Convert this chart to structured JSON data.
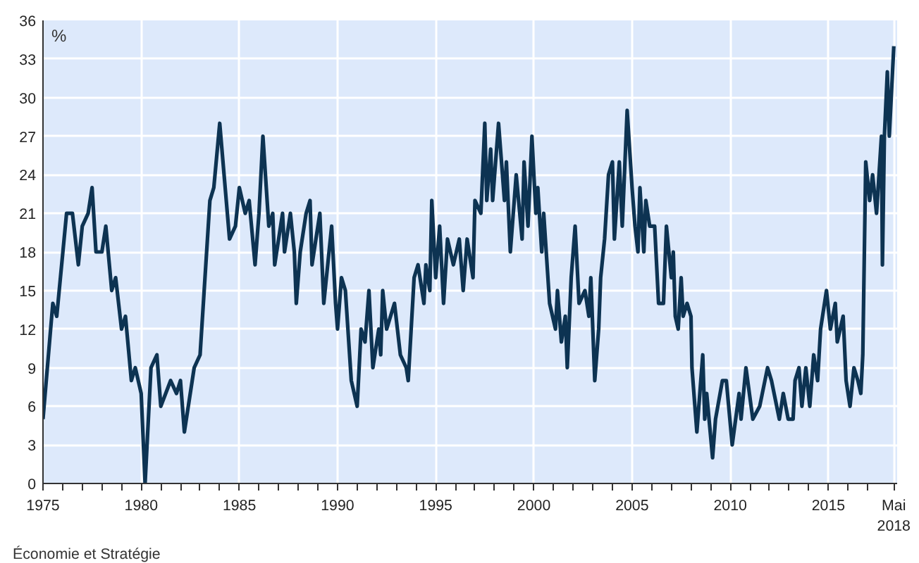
{
  "chart_data": {
    "type": "line",
    "ylabel": "%",
    "annotations": [
      "Économie et Stratégie"
    ],
    "x": [
      1975.0,
      1975.5,
      1975.7,
      1976.2,
      1976.5,
      1976.8,
      1977.0,
      1977.3,
      1977.5,
      1977.7,
      1978.0,
      1978.2,
      1978.5,
      1978.7,
      1979.0,
      1979.2,
      1979.5,
      1979.7,
      1980.0,
      1980.2,
      1980.5,
      1980.8,
      1981.0,
      1981.5,
      1981.8,
      1982.0,
      1982.2,
      1982.7,
      1983.0,
      1983.5,
      1983.7,
      1984.0,
      1984.5,
      1984.8,
      1985.0,
      1985.3,
      1985.5,
      1985.8,
      1986.0,
      1986.2,
      1986.5,
      1986.7,
      1986.8,
      1987.2,
      1987.3,
      1987.6,
      1987.8,
      1987.9,
      1988.1,
      1988.4,
      1988.6,
      1988.7,
      1988.9,
      1989.1,
      1989.3,
      1989.5,
      1989.7,
      1989.9,
      1990.0,
      1990.2,
      1990.4,
      1990.7,
      1991.0,
      1991.2,
      1991.4,
      1991.6,
      1991.8,
      1992.1,
      1992.2,
      1992.3,
      1992.5,
      1992.9,
      1993.2,
      1993.5,
      1993.6,
      1993.9,
      1994.1,
      1994.4,
      1994.5,
      1994.7,
      1994.8,
      1995.0,
      1995.2,
      1995.4,
      1995.6,
      1995.9,
      1996.2,
      1996.4,
      1996.6,
      1996.9,
      1997.0,
      1997.3,
      1997.5,
      1997.6,
      1997.8,
      1997.9,
      1998.2,
      1998.5,
      1998.6,
      1998.8,
      1999.1,
      1999.4,
      1999.5,
      1999.7,
      1999.9,
      2000.1,
      2000.2,
      2000.4,
      2000.5,
      2000.8,
      2001.1,
      2001.2,
      2001.4,
      2001.6,
      2001.7,
      2001.9,
      2002.1,
      2002.3,
      2002.6,
      2002.8,
      2002.9,
      2003.1,
      2003.3,
      2003.4,
      2003.6,
      2003.8,
      2004.0,
      2004.1,
      2004.35,
      2004.5,
      2004.75,
      2005.0,
      2005.15,
      2005.3,
      2005.4,
      2005.6,
      2005.7,
      2005.9,
      2006.15,
      2006.35,
      2006.6,
      2006.75,
      2007.0,
      2007.1,
      2007.2,
      2007.35,
      2007.5,
      2007.6,
      2007.8,
      2008.0,
      2008.05,
      2008.2,
      2008.3,
      2008.6,
      2008.7,
      2008.8,
      2009.1,
      2009.25,
      2009.6,
      2009.8,
      2010.1,
      2010.45,
      2010.55,
      2010.8,
      2011.15,
      2011.5,
      2011.9,
      2012.1,
      2012.5,
      2012.7,
      2012.95,
      2013.2,
      2013.3,
      2013.5,
      2013.65,
      2013.85,
      2014.05,
      2014.25,
      2014.45,
      2014.6,
      2014.9,
      2015.1,
      2015.35,
      2015.45,
      2015.75,
      2015.9,
      2016.1,
      2016.3,
      2016.5,
      2016.65,
      2016.75,
      2016.9,
      2017.1,
      2017.25,
      2017.45,
      2017.7,
      2017.75,
      2017.85,
      2018.0,
      2018.1,
      2018.33
    ],
    "series": [
      {
        "color": "#0d3352",
        "values": [
          5,
          14,
          13,
          21,
          21,
          17,
          20,
          21,
          23,
          18,
          18,
          20,
          15,
          16,
          12,
          13,
          8,
          9,
          7,
          0,
          9,
          10,
          6,
          8,
          7,
          8,
          4,
          9,
          10,
          22,
          23,
          28,
          19,
          20,
          23,
          21,
          22,
          17,
          21,
          27,
          20,
          21,
          17,
          21,
          18,
          21,
          18,
          14,
          18,
          21,
          22,
          17,
          19,
          21,
          14,
          17,
          20,
          14,
          12,
          16,
          15,
          8,
          6,
          12,
          11,
          15,
          9,
          12,
          10,
          15,
          12,
          14,
          10,
          9,
          8,
          16,
          17,
          14,
          17,
          15,
          22,
          16,
          20,
          14,
          19,
          17,
          19,
          15,
          19,
          16,
          22,
          21,
          28,
          22,
          26,
          22,
          28,
          22,
          25,
          18,
          24,
          19,
          25,
          20,
          27,
          21,
          23,
          18,
          21,
          14,
          12,
          15,
          11,
          13,
          9,
          16,
          20,
          14,
          15,
          13,
          16,
          8,
          12,
          16,
          19,
          24,
          25,
          19,
          25,
          20,
          29,
          23,
          20,
          18,
          23,
          18,
          22,
          20,
          20,
          14,
          14,
          20,
          16,
          18,
          13,
          12,
          16,
          13,
          14,
          13,
          9,
          6,
          4,
          10,
          5,
          7,
          2,
          5,
          8,
          8,
          3,
          7,
          5,
          9,
          5,
          6,
          9,
          8,
          5,
          7,
          5,
          5,
          8,
          9,
          6,
          9,
          6,
          10,
          8,
          12,
          15,
          12,
          14,
          11,
          13,
          8,
          6,
          9,
          8,
          7,
          10,
          25,
          22,
          24,
          21,
          27,
          17,
          27,
          32,
          27,
          34
        ]
      }
    ],
    "xlim": [
      1975,
      2018.5
    ],
    "ylim": [
      0,
      36
    ],
    "xticks": [
      1975,
      {
        "value": 1976,
        "label": null
      },
      {
        "value": 1977,
        "label": null
      },
      {
        "value": 1978,
        "label": null
      },
      {
        "value": 1979,
        "label": null
      },
      1980,
      {
        "value": 1981,
        "label": null
      },
      {
        "value": 1982,
        "label": null
      },
      {
        "value": 1983,
        "label": null
      },
      {
        "value": 1984,
        "label": null
      },
      1985,
      {
        "value": 1986,
        "label": null
      },
      {
        "value": 1987,
        "label": null
      },
      {
        "value": 1988,
        "label": null
      },
      {
        "value": 1989,
        "label": null
      },
      1990,
      {
        "value": 1991,
        "label": null
      },
      {
        "value": 1992,
        "label": null
      },
      {
        "value": 1993,
        "label": null
      },
      {
        "value": 1994,
        "label": null
      },
      1995,
      {
        "value": 1996,
        "label": null
      },
      {
        "value": 1997,
        "label": null
      },
      {
        "value": 1998,
        "label": null
      },
      {
        "value": 1999,
        "label": null
      },
      2000,
      {
        "value": 2001,
        "label": null
      },
      {
        "value": 2002,
        "label": null
      },
      {
        "value": 2003,
        "label": null
      },
      {
        "value": 2004,
        "label": null
      },
      2005,
      {
        "value": 2006,
        "label": null
      },
      {
        "value": 2007,
        "label": null
      },
      {
        "value": 2008,
        "label": null
      },
      {
        "value": 2009,
        "label": null
      },
      2010,
      {
        "value": 2011,
        "label": null
      },
      {
        "value": 2012,
        "label": null
      },
      {
        "value": 2013,
        "label": null
      },
      {
        "value": 2014,
        "label": null
      },
      2015,
      {
        "value": 2016,
        "label": null
      },
      {
        "value": 2017,
        "label": null
      },
      {
        "value": 2018.33,
        "label": "Mai\n2018"
      }
    ],
    "yticks": [
      0,
      3,
      6,
      9,
      12,
      15,
      18,
      21,
      24,
      27,
      30,
      33,
      36
    ],
    "grid": true,
    "marker": "none",
    "line_style": "solid"
  }
}
